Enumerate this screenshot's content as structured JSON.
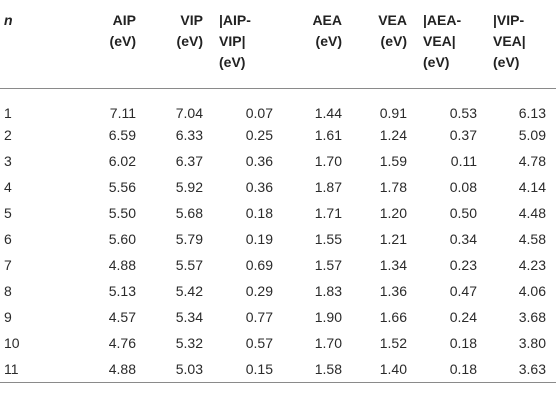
{
  "headers": [
    {
      "key": "n",
      "label": "n"
    },
    {
      "key": "aip",
      "label": "AIP\n(eV)"
    },
    {
      "key": "vip",
      "label": "VIP\n(eV)"
    },
    {
      "key": "aip_vip",
      "label": "|AIP-\nVIP|\n(eV)"
    },
    {
      "key": "aea",
      "label": "AEA\n(eV)"
    },
    {
      "key": "vea",
      "label": "VEA\n(eV)"
    },
    {
      "key": "aea_vea",
      "label": "|AEA-\nVEA|\n(eV)"
    },
    {
      "key": "vip_vea",
      "label": "|VIP-\nVEA|\n(eV)"
    }
  ],
  "rows": [
    [
      "1",
      "7.11",
      "7.04",
      "0.07",
      "1.44",
      "0.91",
      "0.53",
      "6.13"
    ],
    [
      "2",
      "6.59",
      "6.33",
      "0.25",
      "1.61",
      "1.24",
      "0.37",
      "5.09"
    ],
    [
      "3",
      "6.02",
      "6.37",
      "0.36",
      "1.70",
      "1.59",
      "0.11",
      "4.78"
    ],
    [
      "4",
      "5.56",
      "5.92",
      "0.36",
      "1.87",
      "1.78",
      "0.08",
      "4.14"
    ],
    [
      "5",
      "5.50",
      "5.68",
      "0.18",
      "1.71",
      "1.20",
      "0.50",
      "4.48"
    ],
    [
      "6",
      "5.60",
      "5.79",
      "0.19",
      "1.55",
      "1.21",
      "0.34",
      "4.58"
    ],
    [
      "7",
      "4.88",
      "5.57",
      "0.69",
      "1.57",
      "1.34",
      "0.23",
      "4.23"
    ],
    [
      "8",
      "5.13",
      "5.42",
      "0.29",
      "1.83",
      "1.36",
      "0.47",
      "4.06"
    ],
    [
      "9",
      "4.57",
      "5.34",
      "0.77",
      "1.90",
      "1.66",
      "0.24",
      "3.68"
    ],
    [
      "10",
      "4.76",
      "5.32",
      "0.57",
      "1.70",
      "1.52",
      "0.18",
      "3.80"
    ],
    [
      "11",
      "4.88",
      "5.03",
      "0.15",
      "1.58",
      "1.40",
      "0.18",
      "3.63"
    ]
  ]
}
